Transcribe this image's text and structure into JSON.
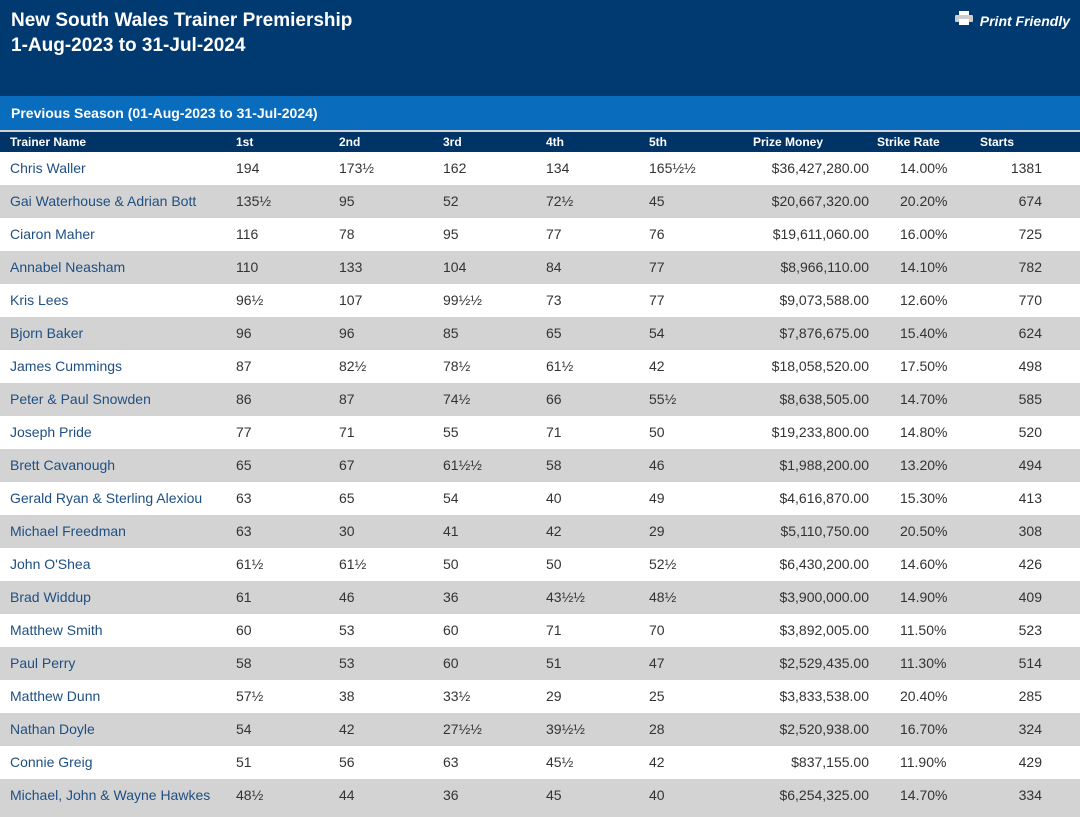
{
  "header": {
    "title": [
      "New South Wales Trainer Premiership",
      "1-Aug-2023 to 31-Jul-2024"
    ],
    "print_link": "Print Friendly"
  },
  "section": {
    "title": "Previous Season (01-Aug-2023 to 31-Jul-2024)"
  },
  "table": {
    "columns": [
      "Trainer Name",
      "1st",
      "2nd",
      "3rd",
      "4th",
      "5th",
      "Prize Money",
      "Strike Rate",
      "Starts"
    ],
    "rows": [
      [
        "Chris Waller",
        "194",
        "173½",
        "162",
        "134",
        "165½½",
        "$36,427,280.00",
        "14.00%",
        "1381"
      ],
      [
        "Gai Waterhouse & Adrian Bott",
        "135½",
        "95",
        "52",
        "72½",
        "45",
        "$20,667,320.00",
        "20.20%",
        "674"
      ],
      [
        "Ciaron Maher",
        "116",
        "78",
        "95",
        "77",
        "76",
        "$19,611,060.00",
        "16.00%",
        "725"
      ],
      [
        "Annabel Neasham",
        "110",
        "133",
        "104",
        "84",
        "77",
        "$8,966,110.00",
        "14.10%",
        "782"
      ],
      [
        "Kris Lees",
        "96½",
        "107",
        "99½½",
        "73",
        "77",
        "$9,073,588.00",
        "12.60%",
        "770"
      ],
      [
        "Bjorn Baker",
        "96",
        "96",
        "85",
        "65",
        "54",
        "$7,876,675.00",
        "15.40%",
        "624"
      ],
      [
        "James Cummings",
        "87",
        "82½",
        "78½",
        "61½",
        "42",
        "$18,058,520.00",
        "17.50%",
        "498"
      ],
      [
        "Peter & Paul Snowden",
        "86",
        "87",
        "74½",
        "66",
        "55½",
        "$8,638,505.00",
        "14.70%",
        "585"
      ],
      [
        "Joseph Pride",
        "77",
        "71",
        "55",
        "71",
        "50",
        "$19,233,800.00",
        "14.80%",
        "520"
      ],
      [
        "Brett Cavanough",
        "65",
        "67",
        "61½½",
        "58",
        "46",
        "$1,988,200.00",
        "13.20%",
        "494"
      ],
      [
        "Gerald Ryan & Sterling Alexiou",
        "63",
        "65",
        "54",
        "40",
        "49",
        "$4,616,870.00",
        "15.30%",
        "413"
      ],
      [
        "Michael Freedman",
        "63",
        "30",
        "41",
        "42",
        "29",
        "$5,110,750.00",
        "20.50%",
        "308"
      ],
      [
        "John O'Shea",
        "61½",
        "61½",
        "50",
        "50",
        "52½",
        "$6,430,200.00",
        "14.60%",
        "426"
      ],
      [
        "Brad Widdup",
        "61",
        "46",
        "36",
        "43½½",
        "48½",
        "$3,900,000.00",
        "14.90%",
        "409"
      ],
      [
        "Matthew Smith",
        "60",
        "53",
        "60",
        "71",
        "70",
        "$3,892,005.00",
        "11.50%",
        "523"
      ],
      [
        "Paul Perry",
        "58",
        "53",
        "60",
        "51",
        "47",
        "$2,529,435.00",
        "11.30%",
        "514"
      ],
      [
        "Matthew Dunn",
        "57½",
        "38",
        "33½",
        "29",
        "25",
        "$3,833,538.00",
        "20.40%",
        "285"
      ],
      [
        "Nathan Doyle",
        "54",
        "42",
        "27½½",
        "39½½",
        "28",
        "$2,520,938.00",
        "16.70%",
        "324"
      ],
      [
        "Connie Greig",
        "51",
        "56",
        "63",
        "45½",
        "42",
        "$837,155.00",
        "11.90%",
        "429"
      ],
      [
        "Michael, John & Wayne Hawkes",
        "48½",
        "44",
        "36",
        "45",
        "40",
        "$6,254,325.00",
        "14.70%",
        "334"
      ]
    ]
  }
}
